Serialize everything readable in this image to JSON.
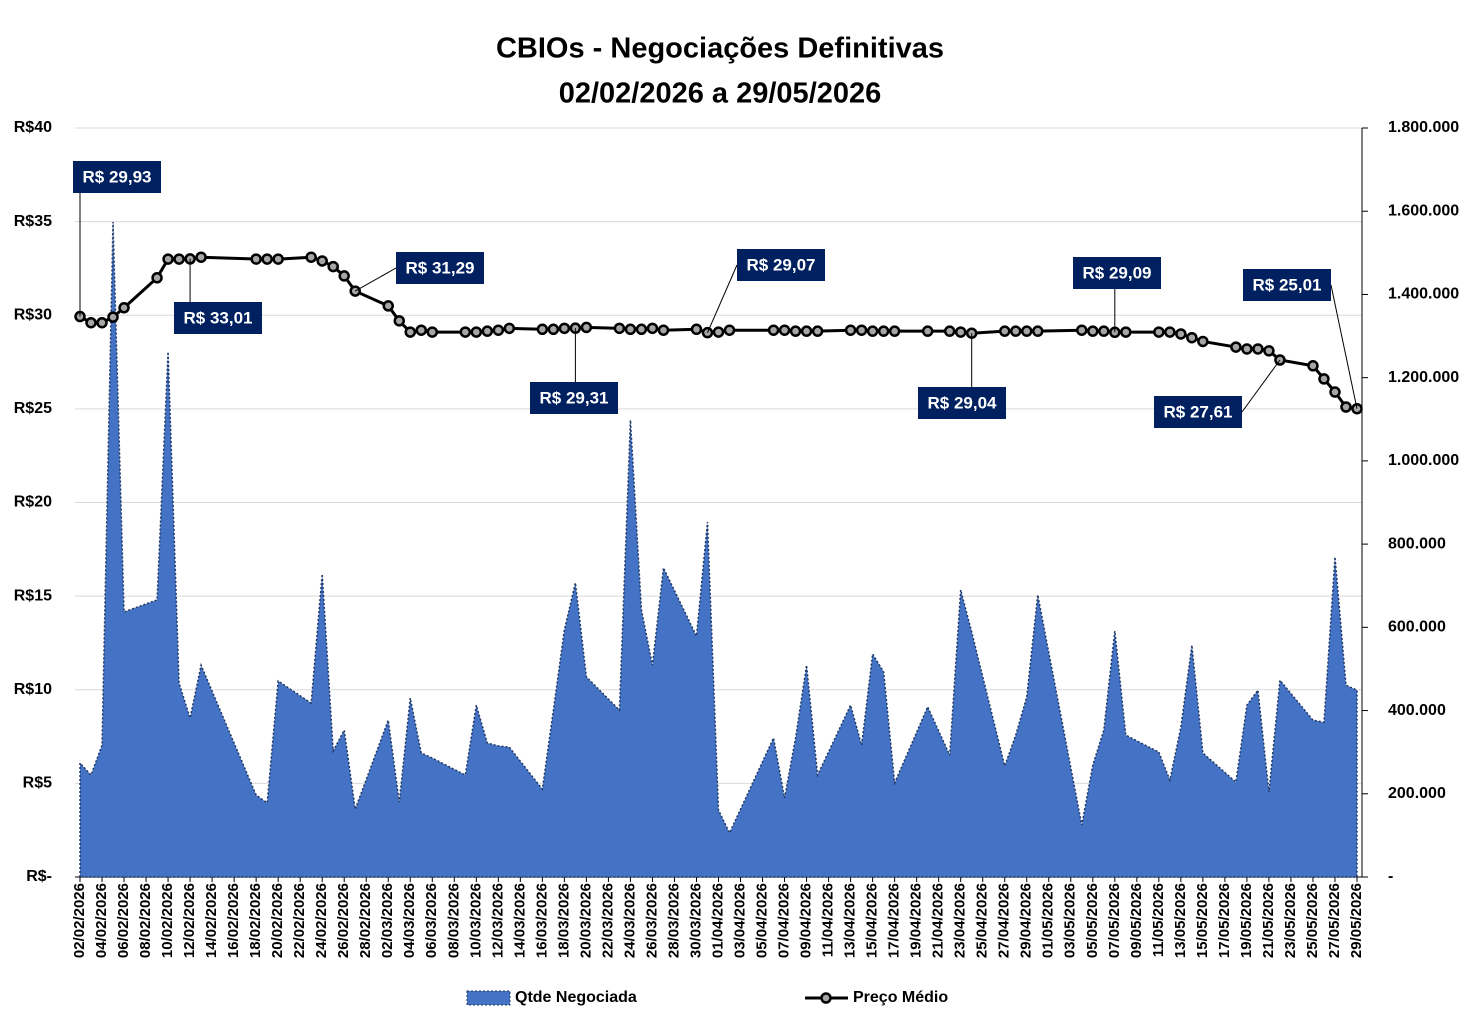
{
  "chart_data": {
    "type": "combo",
    "title": "CBIOs - Negociações Definitivas",
    "subtitle": "02/02/2026 a 29/05/2026",
    "x": [
      "02/02/2026",
      "03/02/2026",
      "04/02/2026",
      "05/02/2026",
      "06/02/2026",
      "09/02/2026",
      "10/02/2026",
      "11/02/2026",
      "12/02/2026",
      "13/02/2026",
      "18/02/2026",
      "19/02/2026",
      "20/02/2026",
      "23/02/2026",
      "24/02/2026",
      "25/02/2026",
      "26/02/2026",
      "27/02/2026",
      "02/03/2026",
      "03/03/2026",
      "04/03/2026",
      "05/03/2026",
      "06/03/2026",
      "09/03/2026",
      "10/03/2026",
      "11/03/2026",
      "12/03/2026",
      "13/03/2026",
      "16/03/2026",
      "17/03/2026",
      "18/03/2026",
      "19/03/2026",
      "20/03/2026",
      "23/03/2026",
      "24/03/2026",
      "25/03/2026",
      "26/03/2026",
      "27/03/2026",
      "30/03/2026",
      "31/03/2026",
      "01/04/2026",
      "02/04/2026",
      "06/04/2026",
      "07/04/2026",
      "08/04/2026",
      "09/04/2026",
      "10/04/2026",
      "13/04/2026",
      "14/04/2026",
      "15/04/2026",
      "16/04/2026",
      "17/04/2026",
      "20/04/2026",
      "22/04/2026",
      "23/04/2026",
      "24/04/2026",
      "27/04/2026",
      "28/04/2026",
      "29/04/2026",
      "30/04/2026",
      "04/05/2026",
      "05/05/2026",
      "06/05/2026",
      "07/05/2026",
      "08/05/2026",
      "11/05/2026",
      "12/05/2026",
      "13/05/2026",
      "14/05/2026",
      "15/05/2026",
      "18/05/2026",
      "19/05/2026",
      "20/05/2026",
      "21/05/2026",
      "22/05/2026",
      "25/05/2026",
      "26/05/2026",
      "27/05/2026",
      "28/05/2026",
      "29/05/2026"
    ],
    "series": [
      {
        "name": "Qtde Negociada",
        "type": "area",
        "axis": "y2",
        "color": "#4472c4",
        "values": [
          274000,
          245000,
          317000,
          1574000,
          637000,
          666000,
          1262000,
          466000,
          382000,
          509000,
          197000,
          178000,
          471000,
          418000,
          728000,
          303000,
          353000,
          163000,
          377000,
          180000,
          430000,
          298000,
          286000,
          245000,
          413000,
          322000,
          315000,
          312000,
          211000,
          401000,
          594000,
          707000,
          481000,
          401000,
          1098000,
          642000,
          509000,
          743000,
          579000,
          853000,
          161000,
          106000,
          334000,
          190000,
          334000,
          509000,
          245000,
          413000,
          317000,
          536000,
          493000,
          226000,
          409000,
          293000,
          690000,
          589000,
          267000,
          341000,
          433000,
          678000,
          125000,
          269000,
          353000,
          591000,
          341000,
          300000,
          233000,
          360000,
          557000,
          298000,
          228000,
          413000,
          449000,
          204000,
          473000,
          377000,
          372000,
          769000,
          461000,
          449000
        ]
      },
      {
        "name": "Preço Médio",
        "type": "line",
        "color": "#000000",
        "marker_color": "#a6a6a6",
        "values": [
          29.93,
          29.6,
          29.6,
          29.9,
          30.4,
          32.0,
          33.0,
          33.0,
          33.01,
          33.1,
          33.0,
          33.0,
          33.0,
          33.1,
          32.9,
          32.6,
          32.1,
          31.29,
          30.5,
          29.7,
          29.1,
          29.2,
          29.1,
          29.1,
          29.1,
          29.15,
          29.2,
          29.3,
          29.25,
          29.25,
          29.3,
          29.31,
          29.35,
          29.3,
          29.25,
          29.25,
          29.3,
          29.2,
          29.25,
          29.07,
          29.1,
          29.2,
          29.2,
          29.2,
          29.15,
          29.15,
          29.15,
          29.2,
          29.2,
          29.15,
          29.15,
          29.15,
          29.15,
          29.15,
          29.1,
          29.04,
          29.15,
          29.15,
          29.15,
          29.15,
          29.2,
          29.15,
          29.15,
          29.09,
          29.1,
          29.1,
          29.1,
          29.0,
          28.8,
          28.6,
          28.3,
          28.2,
          28.2,
          28.1,
          27.61,
          27.3,
          26.6,
          25.9,
          25.1,
          25.01
        ],
        "value_labels": [
          "R$ 29,93",
          null,
          null,
          null,
          null,
          null,
          null,
          null,
          "R$ 33,01",
          null,
          null,
          null,
          null,
          null,
          null,
          null,
          null,
          "R$ 31,29",
          null,
          null,
          null,
          null,
          null,
          null,
          null,
          null,
          null,
          null,
          null,
          null,
          null,
          "R$ 29,31",
          null,
          null,
          null,
          null,
          null,
          null,
          null,
          "R$ 29,07",
          null,
          null,
          null,
          null,
          null,
          null,
          null,
          null,
          null,
          null,
          null,
          null,
          null,
          null,
          null,
          "R$ 29,04",
          null,
          null,
          null,
          null,
          null,
          null,
          null,
          "R$ 29,09",
          null,
          null,
          null,
          null,
          null,
          null,
          null,
          null,
          null,
          null,
          "R$ 27,61",
          null,
          null,
          null,
          null,
          "R$ 25,01"
        ],
        "label_color": "#002060"
      }
    ],
    "xlim": [
      "02/02/2026",
      "29/05/2026"
    ],
    "xticks": [
      "02/02/2026",
      "04/02/2026",
      "06/02/2026",
      "08/02/2026",
      "10/02/2026",
      "12/02/2026",
      "14/02/2026",
      "16/02/2026",
      "18/02/2026",
      "20/02/2026",
      "22/02/2026",
      "24/02/2026",
      "26/02/2026",
      "28/02/2026",
      "02/03/2026",
      "04/03/2026",
      "06/03/2026",
      "08/03/2026",
      "10/03/2026",
      "12/03/2026",
      "14/03/2026",
      "16/03/2026",
      "18/03/2026",
      "20/03/2026",
      "22/03/2026",
      "24/03/2026",
      "26/03/2026",
      "28/03/2026",
      "30/03/2026",
      "01/04/2026",
      "03/04/2026",
      "05/04/2026",
      "07/04/2026",
      "09/04/2026",
      "11/04/2026",
      "13/04/2026",
      "15/04/2026",
      "17/04/2026",
      "19/04/2026",
      "21/04/2026",
      "23/04/2026",
      "25/04/2026",
      "27/04/2026",
      "29/04/2026",
      "01/05/2026",
      "03/05/2026",
      "05/05/2026",
      "07/05/2026",
      "09/05/2026",
      "11/05/2026",
      "13/05/2026",
      "15/05/2026",
      "17/05/2026",
      "19/05/2026",
      "21/05/2026",
      "23/05/2026",
      "25/05/2026",
      "27/05/2026",
      "29/05/2026"
    ],
    "ylim": [
      0,
      40
    ],
    "yticks": [
      {
        "value": 0,
        "label": "R$-"
      },
      {
        "value": 5,
        "label": "R$5"
      },
      {
        "value": 10,
        "label": "R$10"
      },
      {
        "value": 15,
        "label": "R$15"
      },
      {
        "value": 20,
        "label": "R$20"
      },
      {
        "value": 25,
        "label": "R$25"
      },
      {
        "value": 30,
        "label": "R$30"
      },
      {
        "value": 35,
        "label": "R$35"
      },
      {
        "value": 40,
        "label": "R$40"
      }
    ],
    "y2lim": [
      0,
      1800000
    ],
    "y2ticks": [
      {
        "value": 0,
        "label": "-"
      },
      {
        "value": 200000,
        "label": "200.000"
      },
      {
        "value": 400000,
        "label": "400.000"
      },
      {
        "value": 600000,
        "label": "600.000"
      },
      {
        "value": 800000,
        "label": "800.000"
      },
      {
        "value": 1000000,
        "label": "1.000.000"
      },
      {
        "value": 1200000,
        "label": "1.200.000"
      },
      {
        "value": 1400000,
        "label": "1.400.000"
      },
      {
        "value": 1600000,
        "label": "1.600.000"
      },
      {
        "value": 1800000,
        "label": "1.800.000"
      }
    ],
    "grid": true
  }
}
